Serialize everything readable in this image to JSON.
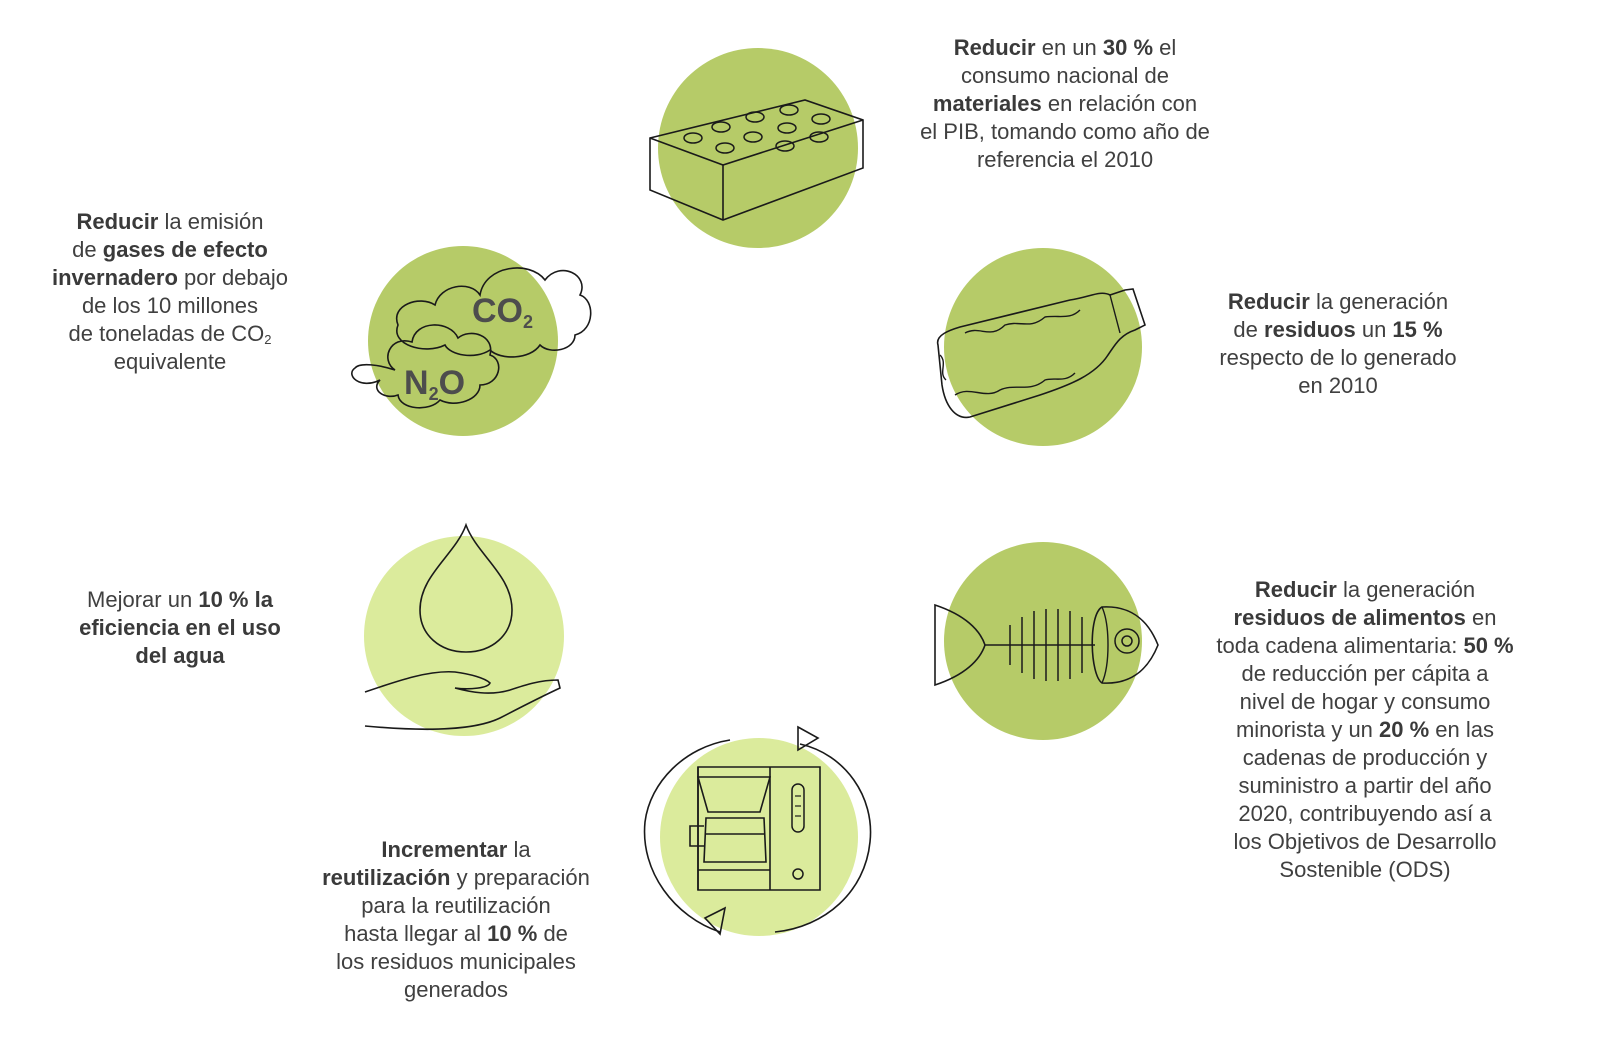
{
  "colors": {
    "circle_dark": "#b6cb68",
    "circle_light": "#dbeb9c",
    "line": "#1a1a1a",
    "text": "#404040"
  },
  "ghg": {
    "icon": "clouds-icon",
    "co2_main": "CO",
    "co2_sub": "2",
    "n2o_main_a": "N",
    "n2o_sub": "2",
    "n2o_main_b": "O",
    "t1": "Reducir",
    "t2": " la emisión",
    "t3": "de ",
    "t4": "gases de efecto",
    "t5": "invernadero",
    "t6": " por debajo",
    "t7": "de los 10 millones",
    "t8": "de toneladas de CO",
    "t8sub": "2",
    "t9": "equivalente"
  },
  "materials": {
    "icon": "brick-icon",
    "t1": "Reducir",
    "t2": " en un ",
    "t3": "30 %",
    "t4": " el",
    "t5": "consumo nacional de",
    "t6": "materiales",
    "t7": " en relación con",
    "t8": "el PIB, tomando como año de",
    "t9": "referencia el 2010"
  },
  "waste": {
    "icon": "bottle-icon",
    "t1": "Reducir",
    "t2": " la generación",
    "t3": "de ",
    "t4": "residuos",
    "t5": " un ",
    "t6": "15 %",
    "t7": "respecto de lo generado",
    "t8": "en 2010"
  },
  "water": {
    "icon": "water-drop-hand-icon",
    "t1": "Mejorar un ",
    "t2": "10 % la",
    "t3": "eficiencia en el uso",
    "t4": "del agua"
  },
  "food": {
    "icon": "fish-bone-icon",
    "t1": "Reducir",
    "t2": " la generación",
    "t3": "residuos de alimentos",
    "t4": " en",
    "t5": "toda cadena alimentaria: ",
    "t6": "50 %",
    "t7": "de reducción per cápita a",
    "t8": "nivel de hogar y consumo",
    "t9": "minorista y un ",
    "t10": "20 %",
    "t11": " en las",
    "t12": "cadenas de producción y",
    "t13": "suministro a partir del año",
    "t14": "2020, contribuyendo así a",
    "t15": "los Objetivos de Desarrollo",
    "t16": "Sostenible (ODS)"
  },
  "reuse": {
    "icon": "coffee-maker-recycle-icon",
    "t1": "Incrementar",
    "t2": " la",
    "t3": "reutilización",
    "t4": " y preparación",
    "t5": "para la reutilización",
    "t6": "hasta llegar al ",
    "t7": "10 %",
    "t8": " de",
    "t9": "los residuos municipales",
    "t10": "generados"
  }
}
